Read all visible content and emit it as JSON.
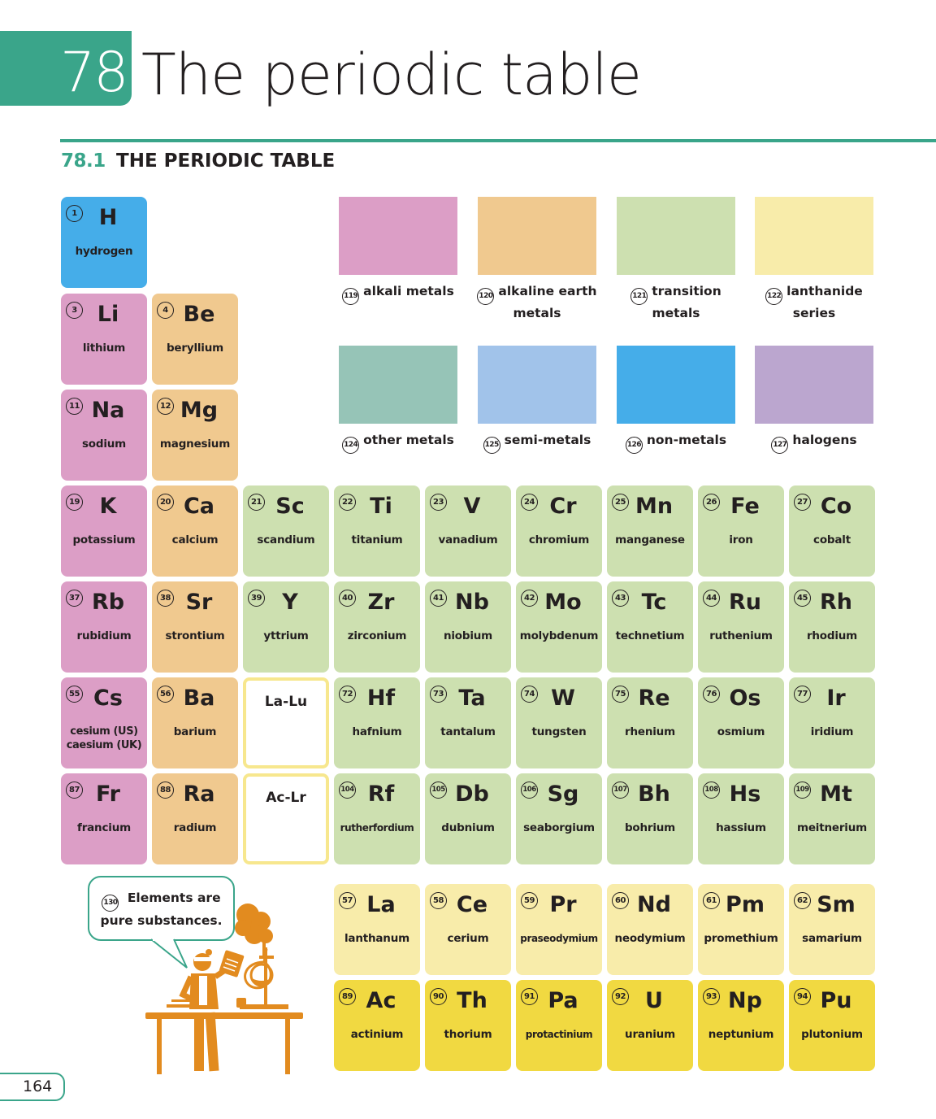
{
  "header": {
    "chapter_number": "78",
    "title": "The periodic table",
    "section_number": "78.1",
    "section_title": "THE PERIODIC TABLE"
  },
  "colors": {
    "brand": "#3aa58a",
    "alkali_metals": "#dc9ec6",
    "alkaline_earth_metals": "#f0c98f",
    "transition_metals": "#cde0b0",
    "lanthanide_series": "#f8ecaa",
    "other_metals": "#96c4b7",
    "semi_metals": "#a1c3ea",
    "non_metals": "#45ade9",
    "halogens": "#bba6cf",
    "actinide_series": "#f1d941",
    "illustration": "#e28b1f"
  },
  "legend": [
    {
      "num": "119",
      "label": "alkali metals",
      "color": "alkali_metals"
    },
    {
      "num": "120",
      "label": "alkaline earth metals",
      "color": "alkaline_earth_metals"
    },
    {
      "num": "121",
      "label": "transition metals",
      "color": "transition_metals"
    },
    {
      "num": "122",
      "label": "lanthanide series",
      "color": "lanthanide_series"
    },
    {
      "num": "124",
      "label": "other metals",
      "color": "other_metals"
    },
    {
      "num": "125",
      "label": "semi-metals",
      "color": "semi_metals"
    },
    {
      "num": "126",
      "label": "non-metals",
      "color": "non_metals"
    },
    {
      "num": "127",
      "label": "halogens",
      "color": "halogens"
    }
  ],
  "elements": [
    {
      "num": "1",
      "sym": "H",
      "name": "hydrogen",
      "cat": "non_metals",
      "row": 0,
      "col": 0
    },
    {
      "num": "3",
      "sym": "Li",
      "name": "lithium",
      "cat": "alkali_metals",
      "row": 1,
      "col": 0
    },
    {
      "num": "4",
      "sym": "Be",
      "name": "beryllium",
      "cat": "alkaline_earth_metals",
      "row": 1,
      "col": 1
    },
    {
      "num": "11",
      "sym": "Na",
      "name": "sodium",
      "cat": "alkali_metals",
      "row": 2,
      "col": 0
    },
    {
      "num": "12",
      "sym": "Mg",
      "name": "magnesium",
      "cat": "alkaline_earth_metals",
      "row": 2,
      "col": 1
    },
    {
      "num": "19",
      "sym": "K",
      "name": "potassium",
      "cat": "alkali_metals",
      "row": 3,
      "col": 0
    },
    {
      "num": "20",
      "sym": "Ca",
      "name": "calcium",
      "cat": "alkaline_earth_metals",
      "row": 3,
      "col": 1
    },
    {
      "num": "21",
      "sym": "Sc",
      "name": "scandium",
      "cat": "transition_metals",
      "row": 3,
      "col": 2
    },
    {
      "num": "22",
      "sym": "Ti",
      "name": "titanium",
      "cat": "transition_metals",
      "row": 3,
      "col": 3
    },
    {
      "num": "23",
      "sym": "V",
      "name": "vanadium",
      "cat": "transition_metals",
      "row": 3,
      "col": 4
    },
    {
      "num": "24",
      "sym": "Cr",
      "name": "chromium",
      "cat": "transition_metals",
      "row": 3,
      "col": 5
    },
    {
      "num": "25",
      "sym": "Mn",
      "name": "manganese",
      "cat": "transition_metals",
      "row": 3,
      "col": 6
    },
    {
      "num": "26",
      "sym": "Fe",
      "name": "iron",
      "cat": "transition_metals",
      "row": 3,
      "col": 7
    },
    {
      "num": "27",
      "sym": "Co",
      "name": "cobalt",
      "cat": "transition_metals",
      "row": 3,
      "col": 8
    },
    {
      "num": "37",
      "sym": "Rb",
      "name": "rubidium",
      "cat": "alkali_metals",
      "row": 4,
      "col": 0
    },
    {
      "num": "38",
      "sym": "Sr",
      "name": "strontium",
      "cat": "alkaline_earth_metals",
      "row": 4,
      "col": 1
    },
    {
      "num": "39",
      "sym": "Y",
      "name": "yttrium",
      "cat": "transition_metals",
      "row": 4,
      "col": 2
    },
    {
      "num": "40",
      "sym": "Zr",
      "name": "zirconium",
      "cat": "transition_metals",
      "row": 4,
      "col": 3
    },
    {
      "num": "41",
      "sym": "Nb",
      "name": "niobium",
      "cat": "transition_metals",
      "row": 4,
      "col": 4
    },
    {
      "num": "42",
      "sym": "Mo",
      "name": "molybdenum",
      "cat": "transition_metals",
      "row": 4,
      "col": 5
    },
    {
      "num": "43",
      "sym": "Tc",
      "name": "technetium",
      "cat": "transition_metals",
      "row": 4,
      "col": 6
    },
    {
      "num": "44",
      "sym": "Ru",
      "name": "ruthenium",
      "cat": "transition_metals",
      "row": 4,
      "col": 7
    },
    {
      "num": "45",
      "sym": "Rh",
      "name": "rhodium",
      "cat": "transition_metals",
      "row": 4,
      "col": 8
    },
    {
      "num": "55",
      "sym": "Cs",
      "name": "cesium (US)\ncaesium (UK)",
      "cat": "alkali_metals",
      "row": 5,
      "col": 0
    },
    {
      "num": "56",
      "sym": "Ba",
      "name": "barium",
      "cat": "alkaline_earth_metals",
      "row": 5,
      "col": 1
    },
    {
      "num": "",
      "sym": "La-Lu",
      "name": "",
      "cat": "placeholder",
      "row": 5,
      "col": 2
    },
    {
      "num": "72",
      "sym": "Hf",
      "name": "hafnium",
      "cat": "transition_metals",
      "row": 5,
      "col": 3
    },
    {
      "num": "73",
      "sym": "Ta",
      "name": "tantalum",
      "cat": "transition_metals",
      "row": 5,
      "col": 4
    },
    {
      "num": "74",
      "sym": "W",
      "name": "tungsten",
      "cat": "transition_metals",
      "row": 5,
      "col": 5
    },
    {
      "num": "75",
      "sym": "Re",
      "name": "rhenium",
      "cat": "transition_metals",
      "row": 5,
      "col": 6
    },
    {
      "num": "76",
      "sym": "Os",
      "name": "osmium",
      "cat": "transition_metals",
      "row": 5,
      "col": 7
    },
    {
      "num": "77",
      "sym": "Ir",
      "name": "iridium",
      "cat": "transition_metals",
      "row": 5,
      "col": 8
    },
    {
      "num": "87",
      "sym": "Fr",
      "name": "francium",
      "cat": "alkali_metals",
      "row": 6,
      "col": 0
    },
    {
      "num": "88",
      "sym": "Ra",
      "name": "radium",
      "cat": "alkaline_earth_metals",
      "row": 6,
      "col": 1
    },
    {
      "num": "",
      "sym": "Ac-Lr",
      "name": "",
      "cat": "placeholder",
      "row": 6,
      "col": 2
    },
    {
      "num": "104",
      "sym": "Rf",
      "name": "rutherfordium",
      "cat": "transition_metals",
      "row": 6,
      "col": 3
    },
    {
      "num": "105",
      "sym": "Db",
      "name": "dubnium",
      "cat": "transition_metals",
      "row": 6,
      "col": 4
    },
    {
      "num": "106",
      "sym": "Sg",
      "name": "seaborgium",
      "cat": "transition_metals",
      "row": 6,
      "col": 5
    },
    {
      "num": "107",
      "sym": "Bh",
      "name": "bohrium",
      "cat": "transition_metals",
      "row": 6,
      "col": 6
    },
    {
      "num": "108",
      "sym": "Hs",
      "name": "hassium",
      "cat": "transition_metals",
      "row": 6,
      "col": 7
    },
    {
      "num": "109",
      "sym": "Mt",
      "name": "meitnerium",
      "cat": "transition_metals",
      "row": 6,
      "col": 8
    },
    {
      "num": "57",
      "sym": "La",
      "name": "lanthanum",
      "cat": "lanthanide_series",
      "row": 7,
      "col": 3
    },
    {
      "num": "58",
      "sym": "Ce",
      "name": "cerium",
      "cat": "lanthanide_series",
      "row": 7,
      "col": 4
    },
    {
      "num": "59",
      "sym": "Pr",
      "name": "praseodymium",
      "cat": "lanthanide_series",
      "row": 7,
      "col": 5
    },
    {
      "num": "60",
      "sym": "Nd",
      "name": "neodymium",
      "cat": "lanthanide_series",
      "row": 7,
      "col": 6
    },
    {
      "num": "61",
      "sym": "Pm",
      "name": "promethium",
      "cat": "lanthanide_series",
      "row": 7,
      "col": 7
    },
    {
      "num": "62",
      "sym": "Sm",
      "name": "samarium",
      "cat": "lanthanide_series",
      "row": 7,
      "col": 8
    },
    {
      "num": "89",
      "sym": "Ac",
      "name": "actinium",
      "cat": "actinide_series",
      "row": 8,
      "col": 3
    },
    {
      "num": "90",
      "sym": "Th",
      "name": "thorium",
      "cat": "actinide_series",
      "row": 8,
      "col": 4
    },
    {
      "num": "91",
      "sym": "Pa",
      "name": "protactinium",
      "cat": "actinide_series",
      "row": 8,
      "col": 5
    },
    {
      "num": "92",
      "sym": "U",
      "name": "uranium",
      "cat": "actinide_series",
      "row": 8,
      "col": 6
    },
    {
      "num": "93",
      "sym": "Np",
      "name": "neptunium",
      "cat": "actinide_series",
      "row": 8,
      "col": 7
    },
    {
      "num": "94",
      "sym": "Pu",
      "name": "plutonium",
      "cat": "actinide_series",
      "row": 8,
      "col": 8
    }
  ],
  "callout": {
    "num": "130",
    "text": "Elements are pure substances."
  },
  "illustration": {
    "icon": "scientist-at-lab-bench-icon"
  },
  "footer": {
    "page_number": "164"
  }
}
